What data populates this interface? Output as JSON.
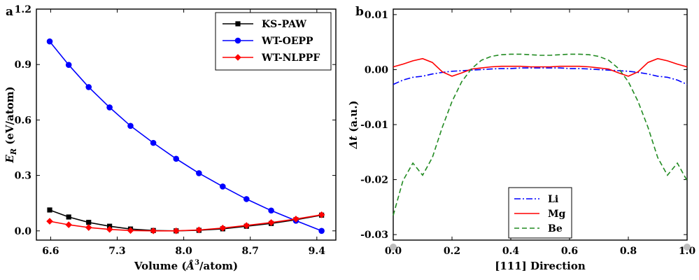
{
  "chart_data": [
    {
      "panel": "a",
      "type": "line",
      "title": "",
      "xlabel": "Volume (Å³/atom)",
      "xlabel_main": "Volume (",
      "xlabel_unit": "Å",
      "xlabel_exp": "3",
      "xlabel_tail": "/atom)",
      "ylabel": "E_R (eV/atom)",
      "ylabel_sym": "E",
      "ylabel_sub": "R",
      "ylabel_tail": " (eV/atom)",
      "xlim": [
        6.45,
        9.6
      ],
      "ylim": [
        -0.05,
        1.2
      ],
      "xticks": [
        "6.6",
        "7.3",
        "8.0",
        "8.7",
        "9.4"
      ],
      "yticks": [
        "0.0",
        "0.3",
        "0.6",
        "0.9",
        "1.2"
      ],
      "legend_position": "top-right",
      "x": [
        6.59,
        6.79,
        7.0,
        7.22,
        7.44,
        7.68,
        7.92,
        8.16,
        8.41,
        8.66,
        8.92,
        9.18,
        9.45
      ],
      "series": [
        {
          "name": "KS-PAW",
          "color": "#000000",
          "marker": "square",
          "values": [
            0.113,
            0.075,
            0.046,
            0.025,
            0.01,
            0.002,
            0.0,
            0.003,
            0.011,
            0.025,
            0.04,
            0.06,
            0.085
          ]
        },
        {
          "name": "WT-OEPP",
          "color": "#0000ff",
          "marker": "circle",
          "values": [
            1.025,
            0.898,
            0.778,
            0.668,
            0.568,
            0.476,
            0.39,
            0.312,
            0.24,
            0.172,
            0.11,
            0.055,
            0.0
          ]
        },
        {
          "name": "WT-NLPPF",
          "color": "#ff0000",
          "marker": "diamond",
          "values": [
            0.052,
            0.033,
            0.018,
            0.008,
            0.002,
            0.0,
            0.0,
            0.005,
            0.015,
            0.029,
            0.045,
            0.064,
            0.087
          ]
        }
      ]
    },
    {
      "panel": "b",
      "type": "line",
      "title": "",
      "xlabel": "[111] Direction",
      "ylabel": "Δt (a.u.)",
      "ylabel_sym": "Δt",
      "ylabel_tail": " (a.u.)",
      "xlim": [
        0.0,
        1.0
      ],
      "ylim": [
        -0.031,
        0.011
      ],
      "xticks": [
        "0.0",
        "0.2",
        "0.4",
        "0.6",
        "0.8",
        "1.0"
      ],
      "yticks": [
        "-0.03",
        "-0.02",
        "-0.01",
        "0.00",
        "0.01"
      ],
      "legend_position": "bottom-center",
      "x": [
        0.0,
        0.033,
        0.067,
        0.1,
        0.133,
        0.167,
        0.2,
        0.233,
        0.267,
        0.3,
        0.333,
        0.367,
        0.4,
        0.433,
        0.467,
        0.5,
        0.533,
        0.567,
        0.6,
        0.633,
        0.667,
        0.7,
        0.733,
        0.767,
        0.8,
        0.833,
        0.867,
        0.9,
        0.933,
        0.967,
        1.0
      ],
      "series": [
        {
          "name": "Li",
          "color": "#0000ff",
          "dash": "dashdot",
          "values": [
            -0.0027,
            -0.0019,
            -0.0014,
            -0.0012,
            -0.0008,
            -0.0005,
            -0.0003,
            -0.0002,
            -0.0001,
            0.0,
            0.0001,
            0.0002,
            0.0002,
            0.0003,
            0.0003,
            0.0003,
            0.0003,
            0.0003,
            0.0002,
            0.0002,
            0.0001,
            0.0,
            -0.0001,
            -0.0002,
            -0.0003,
            -0.0005,
            -0.0008,
            -0.0012,
            -0.0014,
            -0.0019,
            -0.0027
          ]
        },
        {
          "name": "Mg",
          "color": "#ff0000",
          "dash": "solid",
          "values": [
            0.0005,
            0.001,
            0.0016,
            0.002,
            0.0013,
            -0.0004,
            -0.0012,
            -0.0006,
            0.0001,
            0.0003,
            0.0005,
            0.0006,
            0.0006,
            0.0006,
            0.0005,
            0.0005,
            0.0005,
            0.0006,
            0.0006,
            0.0006,
            0.0005,
            0.0003,
            0.0001,
            -0.0006,
            -0.0012,
            -0.0004,
            0.0013,
            0.002,
            0.0016,
            0.001,
            0.0005
          ]
        },
        {
          "name": "Be",
          "color": "#228b22",
          "dash": "dashed",
          "values": [
            -0.0265,
            -0.0202,
            -0.017,
            -0.0192,
            -0.016,
            -0.0105,
            -0.0058,
            -0.0022,
            0.0002,
            0.0017,
            0.0024,
            0.0027,
            0.0028,
            0.0028,
            0.0027,
            0.0026,
            0.0026,
            0.0027,
            0.0028,
            0.0028,
            0.0027,
            0.0024,
            0.0017,
            0.0002,
            -0.0022,
            -0.0058,
            -0.0105,
            -0.016,
            -0.0192,
            -0.017,
            -0.0202
          ]
        }
      ]
    }
  ]
}
